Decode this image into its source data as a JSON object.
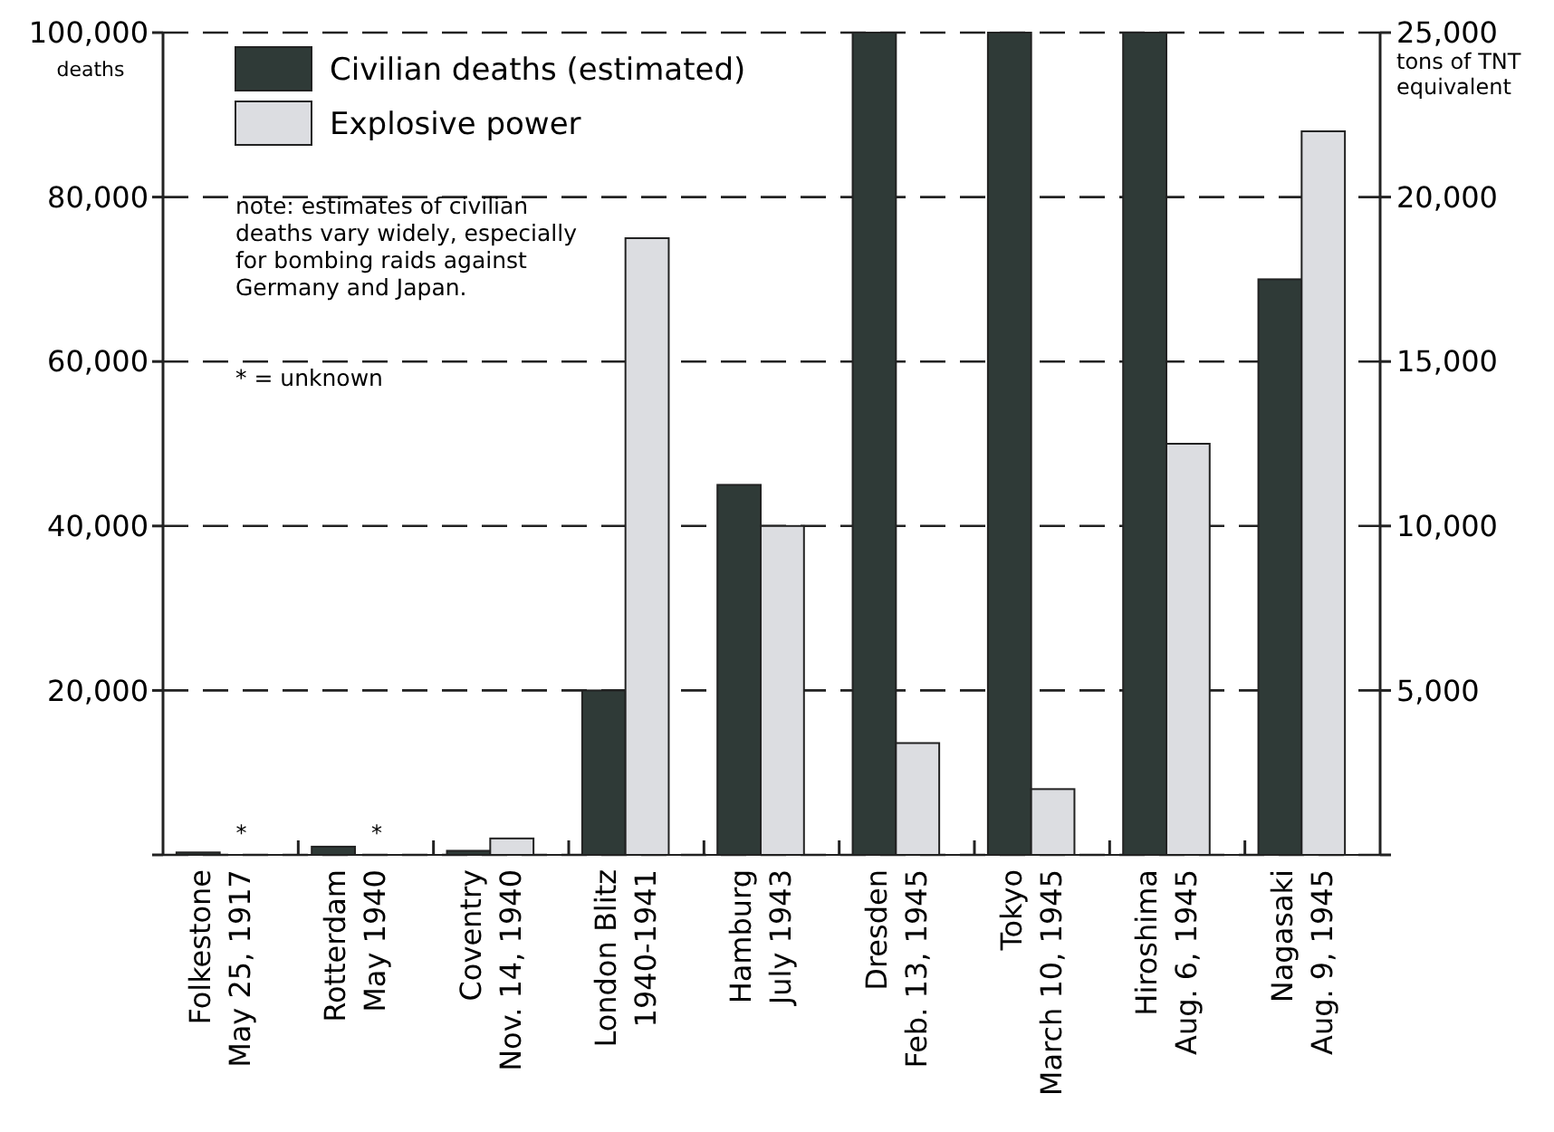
{
  "chart_data": {
    "type": "bar",
    "ylabel": "deaths",
    "y2label": "tons of TNT equivalent",
    "categories": [
      "Folkestone\nMay 25, 1917",
      "Rotterdam\nMay 1940",
      "Coventry\nNov. 14, 1940",
      "London Blitz\n1940-1941",
      "Hamburg\nJuly 1943",
      "Dresden\nFeb. 13, 1945",
      "Tokyo\nMarch 10, 1945",
      "Hiroshima\nAug. 6, 1945",
      "Nagasaki\nAug. 9, 1945"
    ],
    "series": [
      {
        "name": "Civilian deaths (estimated)",
        "color": "#2f3a37",
        "values": [
          300,
          1000,
          500,
          20000,
          45000,
          100000,
          100000,
          100000,
          70000
        ]
      },
      {
        "name": "Explosive power",
        "color": "#dcdde1",
        "axis": "y2",
        "values": [
          null,
          null,
          500,
          18750,
          10000,
          3400,
          2000,
          12500,
          22000
        ]
      }
    ],
    "ylim": [
      0,
      100000
    ],
    "yticks": [
      {
        "value": 0,
        "label": null
      },
      {
        "value": 20000,
        "label": "20,000"
      },
      {
        "value": 40000,
        "label": "40,000"
      },
      {
        "value": 60000,
        "label": "60,000"
      },
      {
        "value": 80000,
        "label": "80,000"
      },
      {
        "value": 100000,
        "label": "100,000"
      }
    ],
    "y2lim": [
      0,
      25000
    ],
    "y2ticks": [
      {
        "value": 0,
        "label": null
      },
      {
        "value": 5000,
        "label": "5,000"
      },
      {
        "value": 10000,
        "label": "10,000"
      },
      {
        "value": 15000,
        "label": "15,000"
      },
      {
        "value": 20000,
        "label": "20,000"
      },
      {
        "value": 25000,
        "label": "25,000"
      }
    ],
    "grid": "y",
    "legend": "top left",
    "annotations": [
      "note: estimates of civilian\ndeaths vary widely, especially\nfor bombing raids against\nGermany and Japan.",
      "* = unknown",
      {
        "text": "*",
        "x": "Folkestone\nMay 25, 1917",
        "y": 0
      },
      {
        "text": "*",
        "x": "Rotterdam\nMay 1940",
        "y": 0
      }
    ]
  }
}
